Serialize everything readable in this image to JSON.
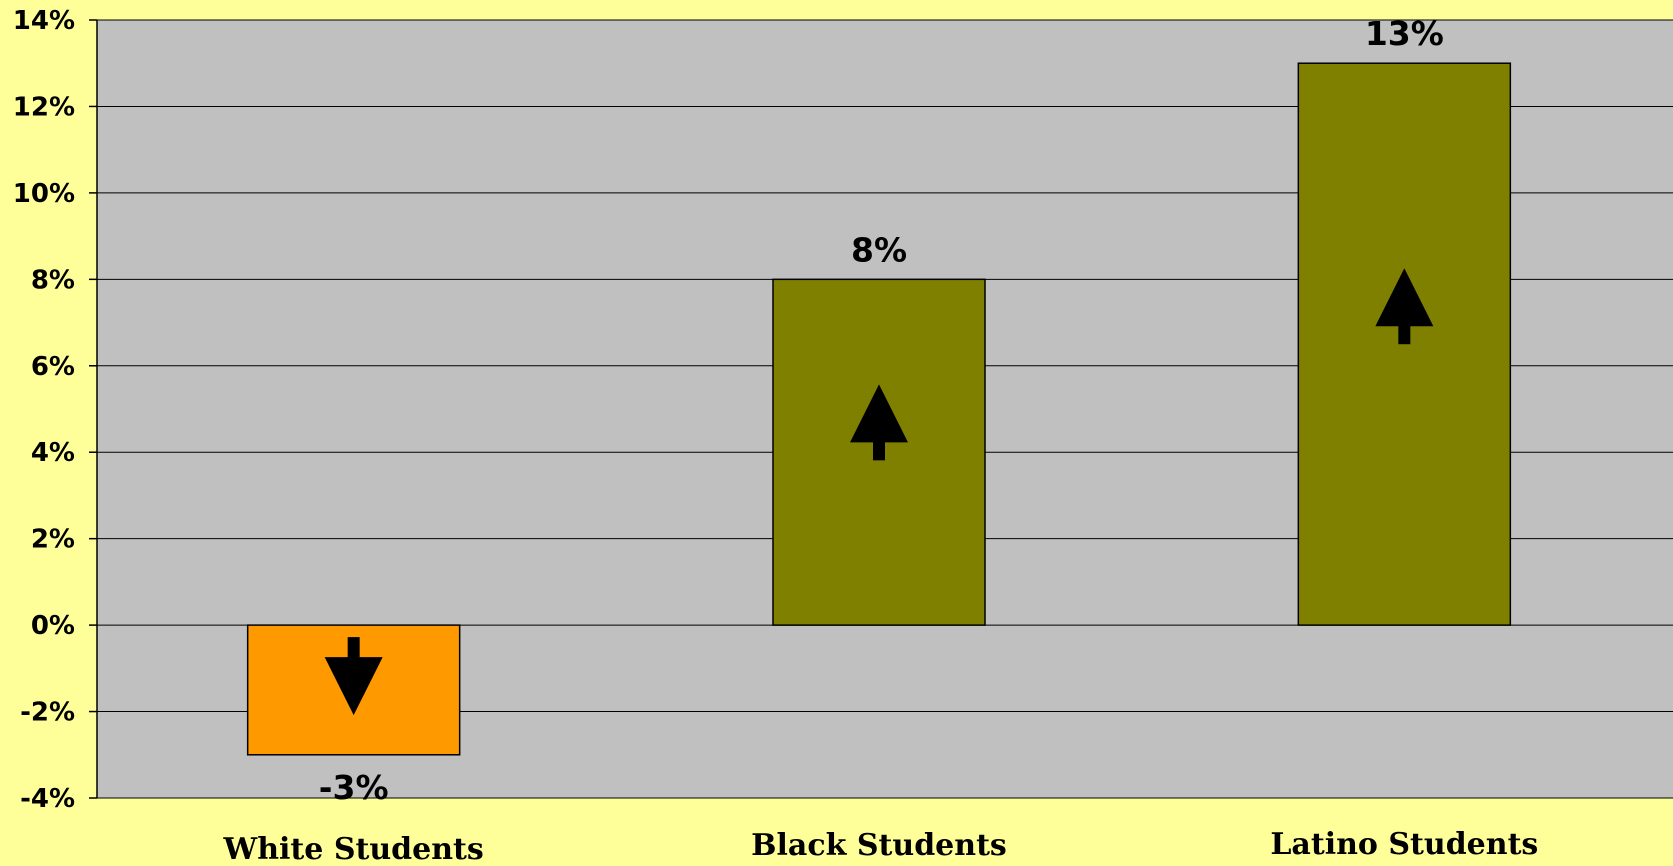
{
  "chart_data": {
    "type": "bar",
    "categories": [
      "White Students",
      "Black Students",
      "Latino Students"
    ],
    "values": [
      -3,
      8,
      13
    ],
    "data_labels": [
      "-3%",
      "8%",
      "13%"
    ],
    "bar_colors": [
      "#FF9900",
      "#808000",
      "#808000"
    ],
    "direction_icons": [
      "down-arrow-icon",
      "up-arrow-icon",
      "up-arrow-icon"
    ],
    "ylim": [
      -4,
      14
    ],
    "y_ticks": [
      {
        "value": 14,
        "label": "14%"
      },
      {
        "value": 12,
        "label": "12%"
      },
      {
        "value": 10,
        "label": "10%"
      },
      {
        "value": 8,
        "label": "8%"
      },
      {
        "value": 6,
        "label": "6%"
      },
      {
        "value": 4,
        "label": "4%"
      },
      {
        "value": 2,
        "label": "2%"
      },
      {
        "value": 0,
        "label": "0%"
      },
      {
        "value": -2,
        "label": "-2%"
      },
      {
        "value": -4,
        "label": "-4%"
      }
    ],
    "grid": true,
    "legend": "none",
    "plot_background": "#C0C0C0",
    "page_background": "#FFFF99"
  }
}
